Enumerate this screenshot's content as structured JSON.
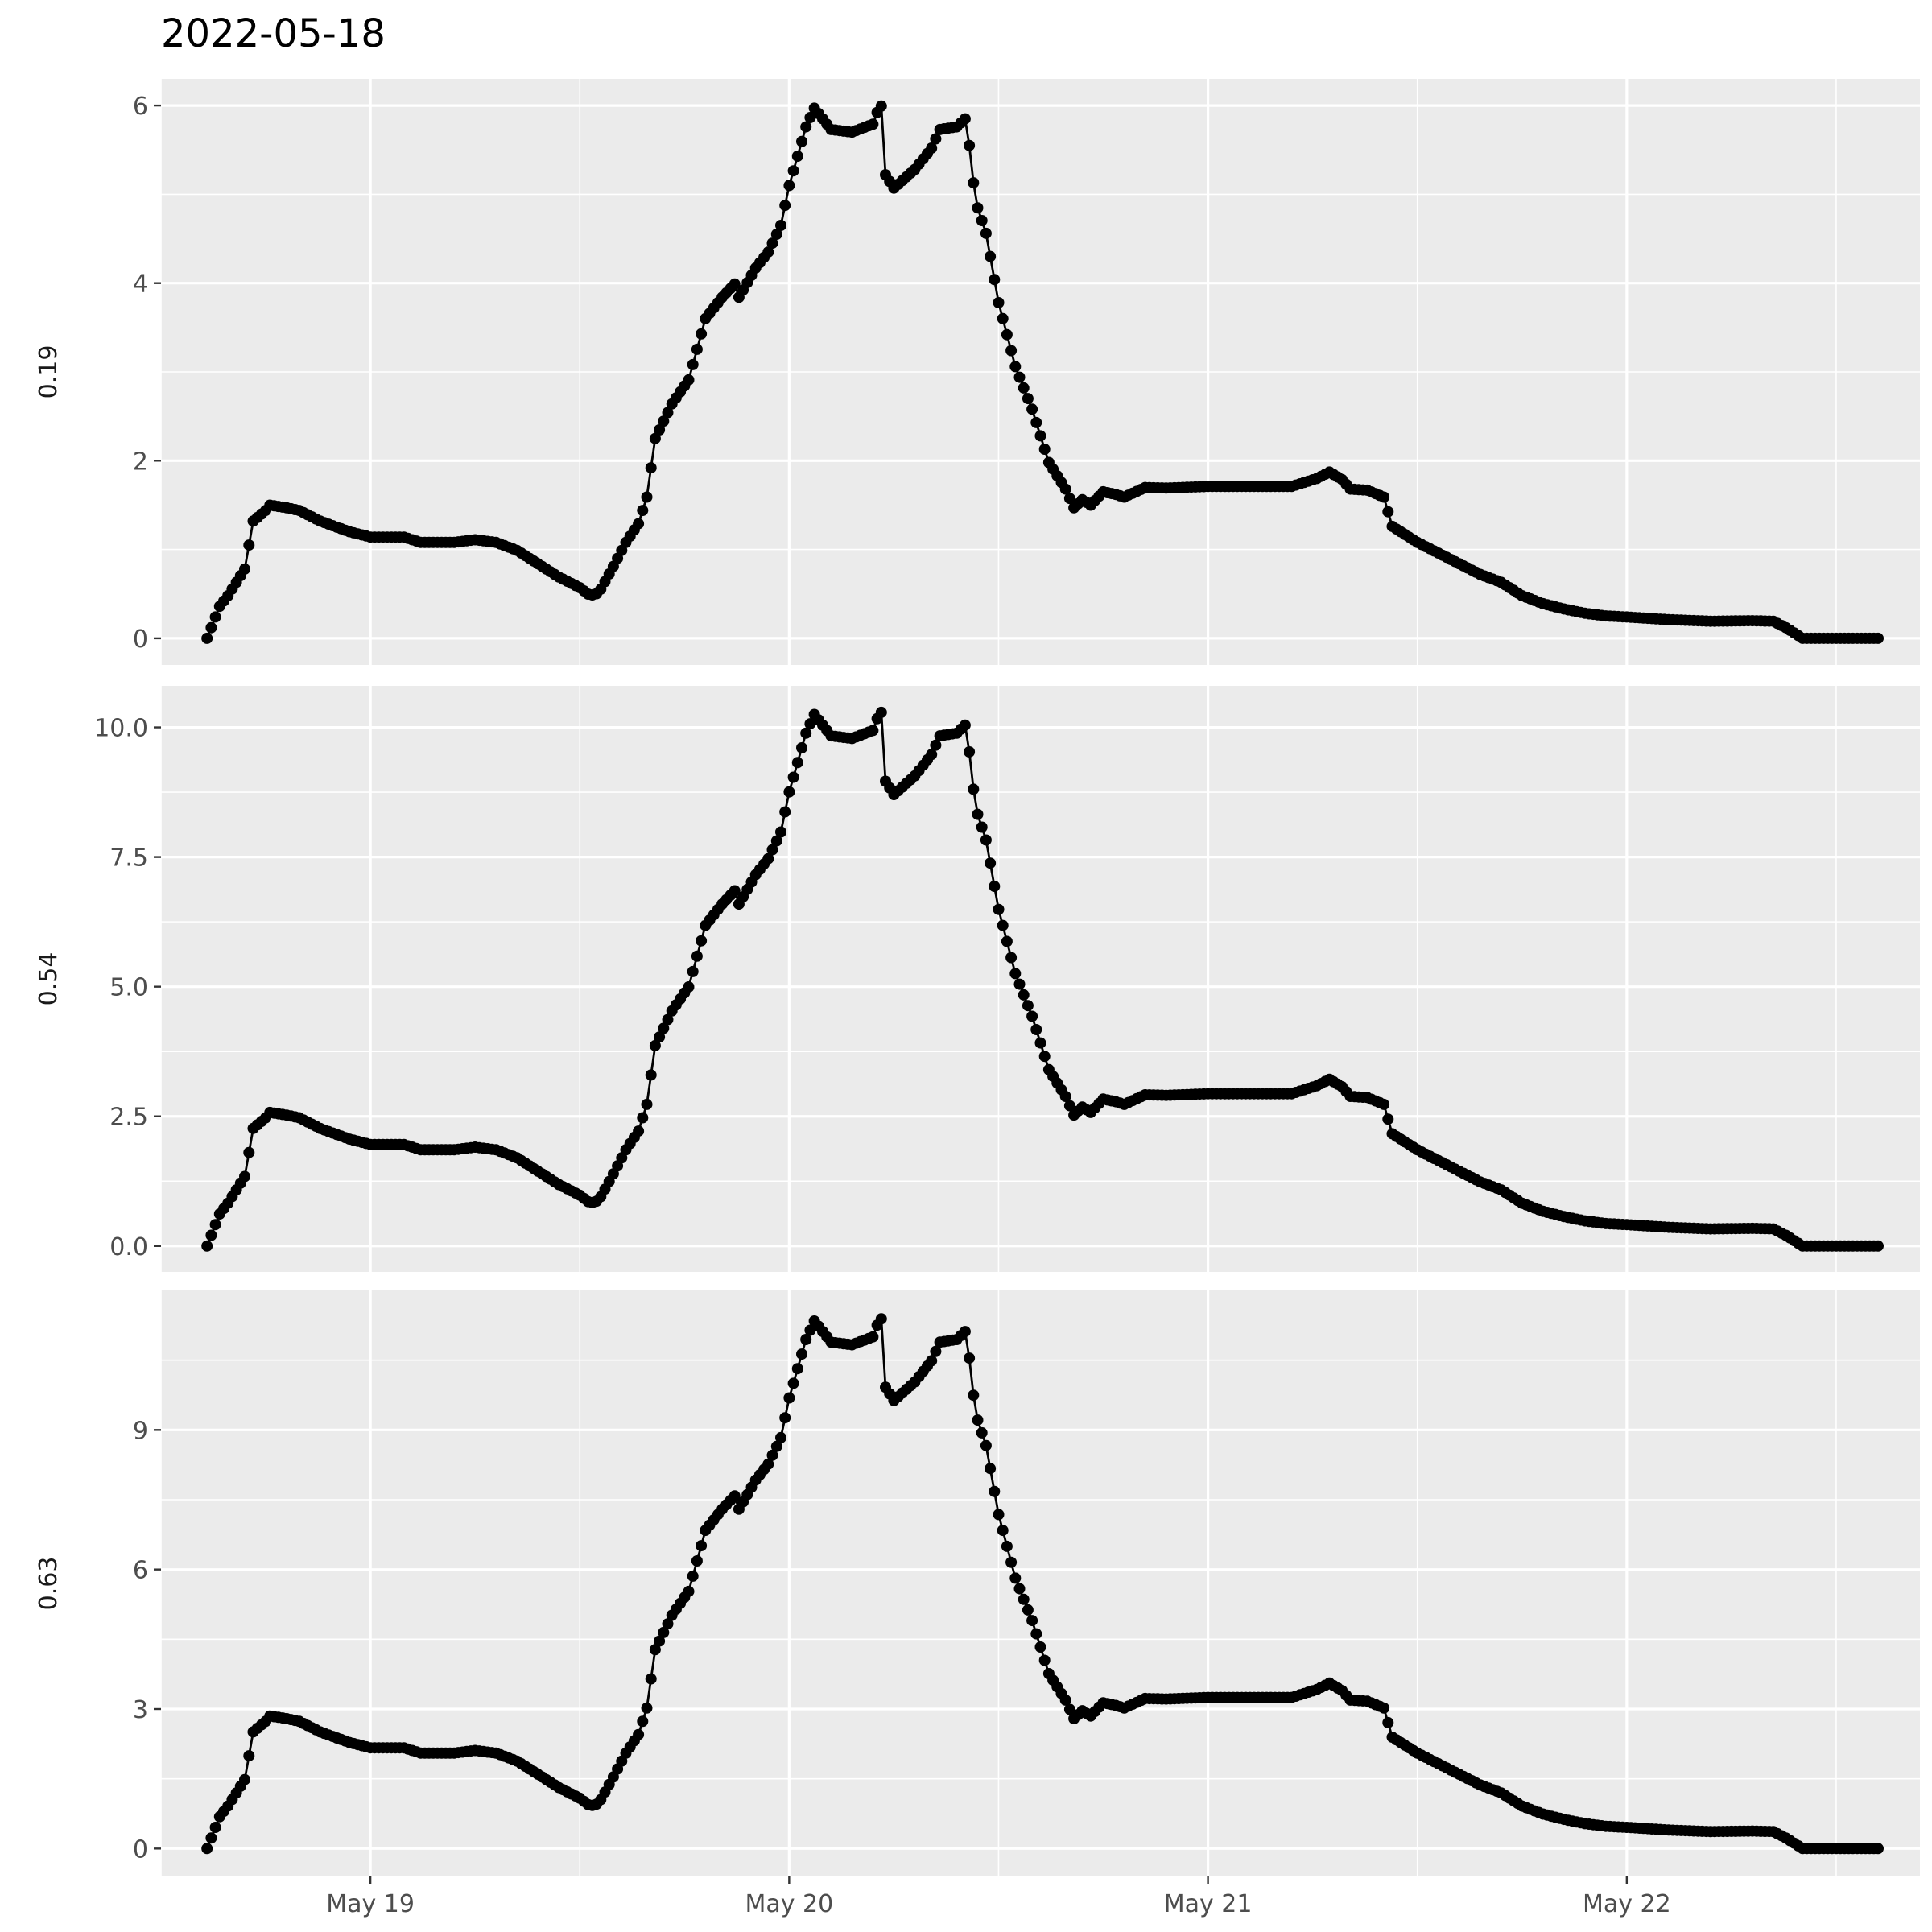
{
  "chart_data": {
    "type": "line",
    "title": "2022-05-18",
    "x_ticks": [
      "May 19",
      "May 20",
      "May 21",
      "May 22"
    ],
    "x_tick_values": [
      1.0,
      2.0,
      3.0,
      4.0
    ],
    "xlim": [
      0.5,
      4.7
    ],
    "x_range_note_days_from": "2022-05-18",
    "panels": [
      {
        "strip_label": "0.19",
        "ylim": [
          -0.3,
          6.3
        ],
        "y_ticks": [
          0,
          2,
          4,
          6
        ],
        "y_tick_labels": [
          "0",
          "2",
          "4",
          "6"
        ],
        "y_minor": [
          1,
          3,
          5
        ]
      },
      {
        "strip_label": "0.54",
        "ylim": [
          -0.5,
          10.8
        ],
        "y_ticks": [
          0,
          2.5,
          5,
          7.5,
          10
        ],
        "y_tick_labels": [
          "0.0",
          "2.5",
          "5.0",
          "7.5",
          "10.0"
        ],
        "y_minor": [
          1.25,
          3.75,
          6.25,
          8.75
        ]
      },
      {
        "strip_label": "0.63",
        "ylim": [
          -0.6,
          12.0
        ],
        "y_ticks": [
          0,
          3,
          6,
          9
        ],
        "y_tick_labels": [
          "0",
          "3",
          "6",
          "9"
        ],
        "y_minor": [
          1.5,
          4.5,
          7.5,
          10.5
        ]
      }
    ],
    "shape_keyframes": [
      [
        0.61,
        0.0
      ],
      [
        0.64,
        0.06
      ],
      [
        0.66,
        0.08
      ],
      [
        0.7,
        0.13
      ],
      [
        0.72,
        0.22
      ],
      [
        0.75,
        0.24
      ],
      [
        0.76,
        0.25
      ],
      [
        0.8,
        0.245
      ],
      [
        0.83,
        0.24
      ],
      [
        0.88,
        0.22
      ],
      [
        0.95,
        0.2
      ],
      [
        1.0,
        0.19
      ],
      [
        1.08,
        0.19
      ],
      [
        1.12,
        0.18
      ],
      [
        1.2,
        0.18
      ],
      [
        1.25,
        0.185
      ],
      [
        1.3,
        0.18
      ],
      [
        1.35,
        0.165
      ],
      [
        1.4,
        0.14
      ],
      [
        1.45,
        0.115
      ],
      [
        1.5,
        0.095
      ],
      [
        1.525,
        0.08
      ],
      [
        1.545,
        0.085
      ],
      [
        1.58,
        0.135
      ],
      [
        1.61,
        0.18
      ],
      [
        1.64,
        0.215
      ],
      [
        1.66,
        0.265
      ],
      [
        1.68,
        0.375
      ],
      [
        1.72,
        0.44
      ],
      [
        1.76,
        0.485
      ],
      [
        1.8,
        0.6
      ],
      [
        1.84,
        0.64
      ],
      [
        1.87,
        0.665
      ],
      [
        1.88,
        0.64
      ],
      [
        1.92,
        0.695
      ],
      [
        1.95,
        0.725
      ],
      [
        1.98,
        0.775
      ],
      [
        2.0,
        0.85
      ],
      [
        2.04,
        0.96
      ],
      [
        2.06,
        0.995
      ],
      [
        2.1,
        0.955
      ],
      [
        2.15,
        0.95
      ],
      [
        2.2,
        0.965
      ],
      [
        2.215,
        0.998
      ],
      [
        2.225,
        1.0
      ],
      [
        2.23,
        0.87
      ],
      [
        2.25,
        0.845
      ],
      [
        2.3,
        0.88
      ],
      [
        2.34,
        0.92
      ],
      [
        2.36,
        0.955
      ],
      [
        2.4,
        0.96
      ],
      [
        2.42,
        0.975
      ],
      [
        2.43,
        0.925
      ],
      [
        2.445,
        0.82
      ],
      [
        2.47,
        0.76
      ],
      [
        2.5,
        0.63
      ],
      [
        2.54,
        0.51
      ],
      [
        2.58,
        0.43
      ],
      [
        2.62,
        0.33
      ],
      [
        2.66,
        0.28
      ],
      [
        2.68,
        0.245
      ],
      [
        2.7,
        0.26
      ],
      [
        2.72,
        0.25
      ],
      [
        2.75,
        0.275
      ],
      [
        2.78,
        0.27
      ],
      [
        2.8,
        0.265
      ],
      [
        2.85,
        0.283
      ],
      [
        2.9,
        0.282
      ],
      [
        3.0,
        0.285
      ],
      [
        3.1,
        0.285
      ],
      [
        3.2,
        0.285
      ],
      [
        3.26,
        0.3
      ],
      [
        3.29,
        0.312
      ],
      [
        3.32,
        0.298
      ],
      [
        3.34,
        0.28
      ],
      [
        3.38,
        0.278
      ],
      [
        3.42,
        0.265
      ],
      [
        3.44,
        0.21
      ],
      [
        3.5,
        0.18
      ],
      [
        3.55,
        0.16
      ],
      [
        3.6,
        0.14
      ],
      [
        3.65,
        0.12
      ],
      [
        3.7,
        0.105
      ],
      [
        3.75,
        0.08
      ],
      [
        3.8,
        0.065
      ],
      [
        3.85,
        0.055
      ],
      [
        3.9,
        0.047
      ],
      [
        3.95,
        0.042
      ],
      [
        4.0,
        0.04
      ],
      [
        4.1,
        0.035
      ],
      [
        4.2,
        0.032
      ],
      [
        4.3,
        0.033
      ],
      [
        4.35,
        0.032
      ],
      [
        4.38,
        0.02
      ],
      [
        4.42,
        0.0
      ],
      [
        4.6,
        0.0
      ]
    ],
    "peak_values": [
      6.0,
      10.3,
      11.4
    ],
    "grid": true,
    "legend": "none",
    "markers": "points"
  }
}
